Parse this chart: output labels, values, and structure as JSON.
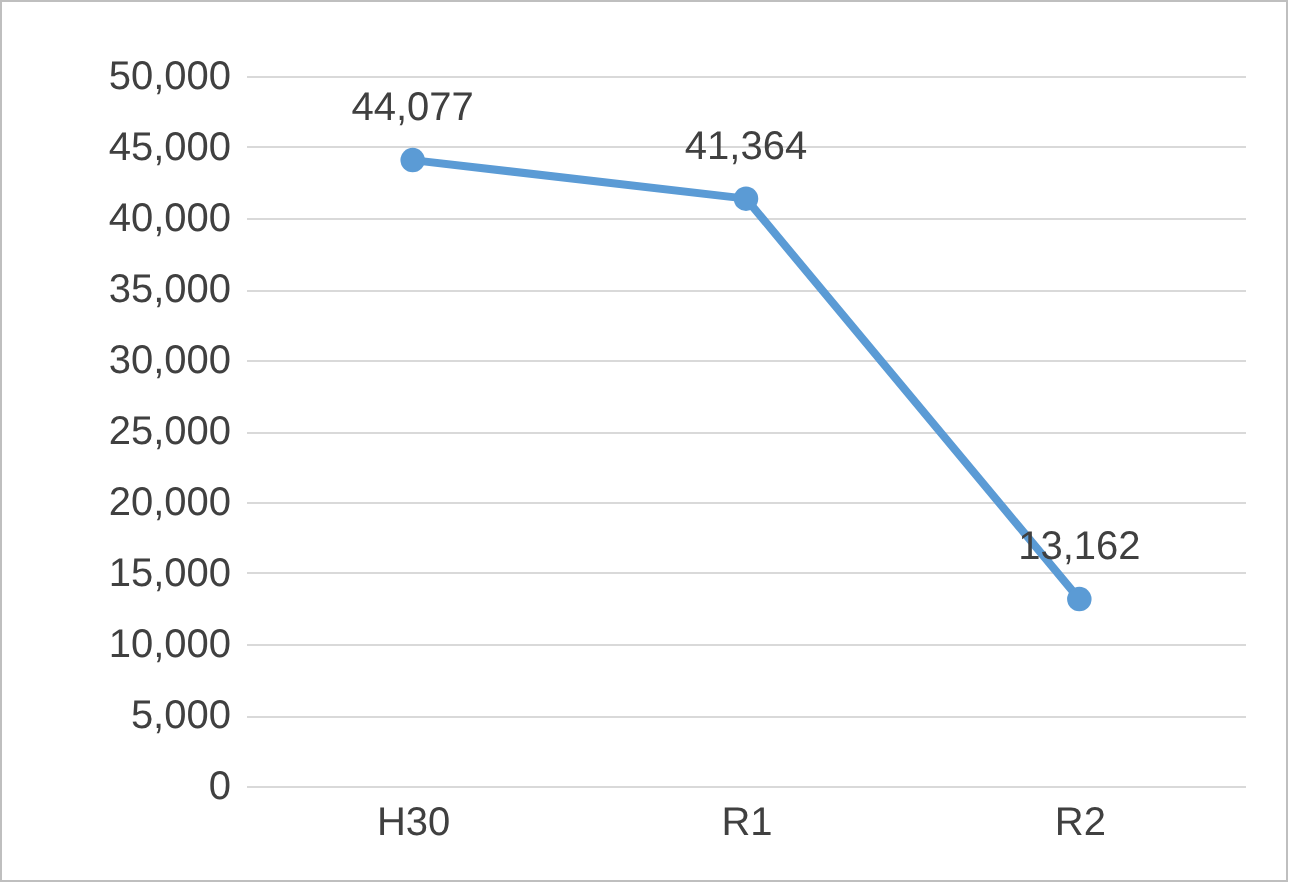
{
  "chart_data": {
    "type": "line",
    "categories": [
      "H30",
      "R1",
      "R2"
    ],
    "series": [
      {
        "color": "#5b9bd5",
        "values": [
          44077,
          41364,
          13162
        ],
        "value_labels": [
          "44,077",
          "41,364",
          "13,162"
        ]
      }
    ],
    "ylim": [
      0,
      50000
    ],
    "yticks": [
      {
        "value": 0,
        "label": "0"
      },
      {
        "value": 5000,
        "label": "5,000"
      },
      {
        "value": 10000,
        "label": "10,000"
      },
      {
        "value": 15000,
        "label": "15,000"
      },
      {
        "value": 20000,
        "label": "20,000"
      },
      {
        "value": 25000,
        "label": "25,000"
      },
      {
        "value": 30000,
        "label": "30,000"
      },
      {
        "value": 35000,
        "label": "35,000"
      },
      {
        "value": 40000,
        "label": "40,000"
      },
      {
        "value": 45000,
        "label": "45,000"
      },
      {
        "value": 50000,
        "label": "50,000"
      }
    ],
    "grid": "y",
    "data_labels": true,
    "marker": "circle",
    "line_style": "solid"
  }
}
